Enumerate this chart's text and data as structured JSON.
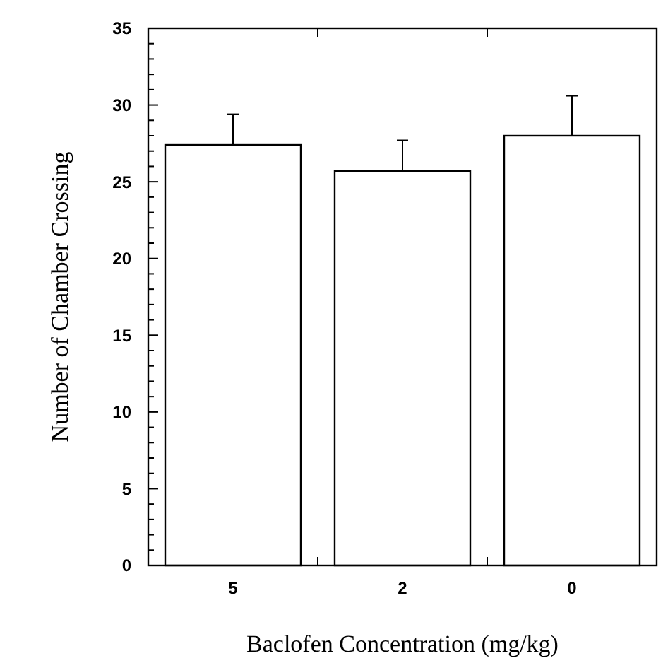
{
  "chart_data": {
    "type": "bar",
    "xlabel": "Baclofen Concentration (mg/kg)",
    "ylabel": "Number of Chamber Crossing",
    "categories": [
      "5",
      "2",
      "0"
    ],
    "values": [
      27.4,
      25.7,
      28.0
    ],
    "errors": [
      2.0,
      2.0,
      2.6
    ],
    "color": "#ffffff",
    "ylim": [
      0,
      35
    ],
    "yticks": [
      0,
      {
        "value": 1,
        "label": null
      },
      {
        "value": 2,
        "label": null
      },
      {
        "value": 3,
        "label": null
      },
      {
        "value": 4,
        "label": null
      },
      5,
      {
        "value": 6,
        "label": null
      },
      {
        "value": 7,
        "label": null
      },
      {
        "value": 8,
        "label": null
      },
      {
        "value": 9,
        "label": null
      },
      10,
      {
        "value": 11,
        "label": null
      },
      {
        "value": 12,
        "label": null
      },
      {
        "value": 13,
        "label": null
      },
      {
        "value": 14,
        "label": null
      },
      15,
      {
        "value": 16,
        "label": null
      },
      {
        "value": 17,
        "label": null
      },
      {
        "value": 18,
        "label": null
      },
      {
        "value": 19,
        "label": null
      },
      20,
      {
        "value": 21,
        "label": null
      },
      {
        "value": 22,
        "label": null
      },
      {
        "value": 23,
        "label": null
      },
      {
        "value": 24,
        "label": null
      },
      25,
      {
        "value": 26,
        "label": null
      },
      {
        "value": 27,
        "label": null
      },
      {
        "value": 28,
        "label": null
      },
      {
        "value": 29,
        "label": null
      },
      30,
      {
        "value": 31,
        "label": null
      },
      {
        "value": 32,
        "label": null
      },
      {
        "value": 33,
        "label": null
      },
      {
        "value": 34,
        "label": null
      },
      35
    ],
    "grid": false
  }
}
